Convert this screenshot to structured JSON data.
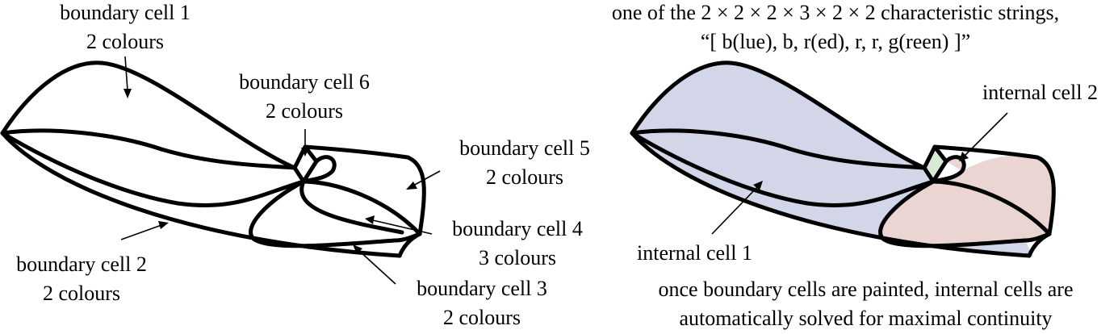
{
  "left_figure": {
    "labels": {
      "bc1": {
        "line1": "boundary cell 1",
        "line2": "2 colours"
      },
      "bc6": {
        "line1": "boundary cell 6",
        "line2": "2 colours"
      },
      "bc5": {
        "line1": "boundary cell 5",
        "line2": "2 colours"
      },
      "bc4": {
        "line1": "boundary cell 4",
        "line2": "3 colours"
      },
      "bc2": {
        "line1": "boundary cell 2",
        "line2": "2 colours"
      },
      "bc3": {
        "line1": "boundary cell 3",
        "line2": "2 colours"
      }
    }
  },
  "right_figure": {
    "title_line1": "one of the 2 × 2 × 2 × 3 × 2 × 2 characteristic strings,",
    "title_line2": "“[ b(lue), b, r(ed), r, r, g(reen) ]”",
    "internal_cell_2": "internal cell 2",
    "internal_cell_1": "internal cell 1",
    "caption_line1": "once boundary cells are painted, internal cells are",
    "caption_line2": "automatically solved for maximal continuity",
    "colors": {
      "blue": "#d3d5e9",
      "red": "#ead5d3",
      "green": "#d7ead3"
    }
  }
}
